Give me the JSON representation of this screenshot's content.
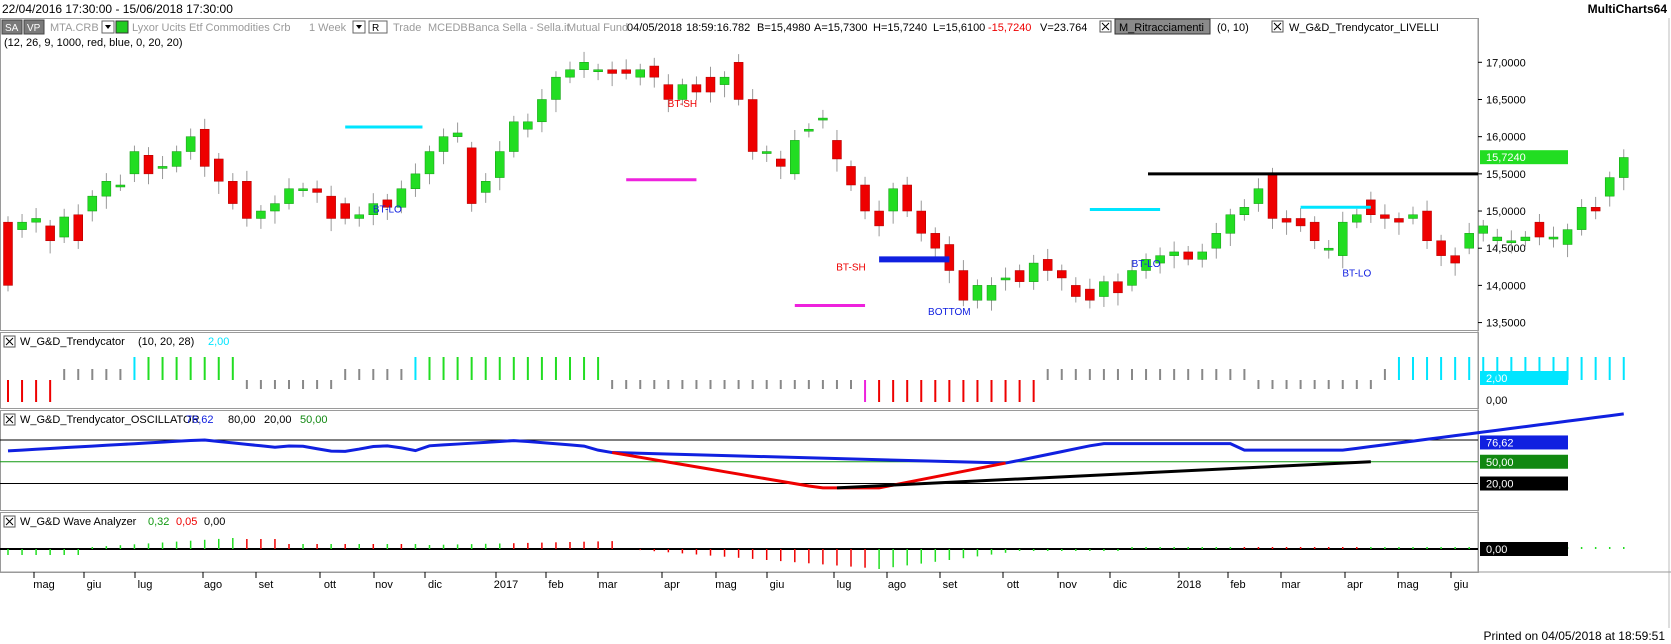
{
  "header": {
    "date_range": "22/04/2016 17:30:00 - 15/06/2018 17:30:00",
    "brand": "MultiCharts64"
  },
  "footer": {
    "printed": "Printed on 04/05/2018 at 18:59:51"
  },
  "toolbar": {
    "btn_sa": "SA",
    "btn_vp": "VP",
    "symbol": "MTA.CRB",
    "description": "Lyxor Ucits Etf Commodities Crb",
    "resolution": "1 Week",
    "btn_r": "R",
    "trade": "Trade",
    "exchange": "MCEDB",
    "broker": "Banca Sella - Sella.it",
    "data_type": "Mutual Fund",
    "datetime": "04/05/2018",
    "time": "18:59:16.782",
    "bid": "B=15,4980",
    "ask": "A=15,7300",
    "high": "H=15,7240",
    "low": "L=15,6100",
    "last": "-15,7240",
    "volume": "V=23.764",
    "study1": "M_Ritracciamenti",
    "study1_params": "(0,  10)",
    "study2": "W_G&D_Trendycator_LIVELLI",
    "params_line": "(12,  26,  9,  1000,  red,  blue,  0,  20,  20)"
  },
  "colors": {
    "up": "#22dd22",
    "down": "#ee0000",
    "cyan": "#00e5ff",
    "magenta": "#ee22dd",
    "blue": "#1020e0",
    "black": "#000000",
    "gray": "#888888"
  },
  "panes": {
    "trendycator": {
      "title": "W_G&D_Trendycator",
      "params": "(10,  20,  28)",
      "value": "2,00",
      "axis_labels": [
        "2,00",
        "0,00"
      ]
    },
    "oscillator": {
      "title": "W_G&D_Trendycator_OSCILLATOR",
      "value": "76,62",
      "level80": "80,00",
      "level20": "20,00",
      "level50": "50,00",
      "axis_labels": [
        "76,62",
        "50,00",
        "20,00"
      ]
    },
    "wave": {
      "title": "W_G&D Wave Analyzer",
      "v1": "0,32",
      "v2": "0,05",
      "v3": "0,00",
      "axis_labels": [
        "0,00"
      ]
    }
  },
  "annotations": [
    {
      "text": "BT-LO",
      "color": "#1020e0",
      "pos": "nov 2016"
    },
    {
      "text": "BT-SH",
      "color": "#ee0000",
      "pos": "apr 2017"
    },
    {
      "text": "BT-SH",
      "color": "#ee0000",
      "pos": "lug 2017"
    },
    {
      "text": "BOTTOM",
      "color": "#1020e0",
      "pos": "ago 2017"
    },
    {
      "text": "BT-LO",
      "color": "#1020e0",
      "pos": "dic 2017"
    },
    {
      "text": "BT-LO",
      "color": "#1020e0",
      "pos": "apr 2018"
    }
  ],
  "chart_data": {
    "type": "candlestick",
    "price_axis": [
      "17,0000",
      "16,5000",
      "16,0000",
      "15,5000",
      "15,0000",
      "14,5000",
      "14,0000",
      "13,5000"
    ],
    "last_price_label": "15,7240",
    "ylim": [
      13.4,
      17.3
    ],
    "x_labels": [
      "mag",
      "giu",
      "lug",
      "ago",
      "set",
      "ott",
      "nov",
      "dic",
      "2017",
      "feb",
      "mar",
      "apr",
      "mag",
      "giu",
      "lug",
      "ago",
      "set",
      "ott",
      "nov",
      "dic",
      "2018",
      "feb",
      "mar",
      "apr",
      "mag",
      "giu"
    ],
    "levels": [
      {
        "value": 15.5,
        "color": "#000000"
      }
    ],
    "candles": [
      [
        14.85,
        14.0
      ],
      [
        14.75,
        14.85
      ],
      [
        14.85,
        14.9
      ],
      [
        14.8,
        14.6
      ],
      [
        14.65,
        14.92
      ],
      [
        14.95,
        14.6
      ],
      [
        15.0,
        15.2
      ],
      [
        15.2,
        15.4
      ],
      [
        15.35,
        15.35
      ],
      [
        15.5,
        15.8
      ],
      [
        15.75,
        15.5
      ],
      [
        15.6,
        15.6
      ],
      [
        15.6,
        15.8
      ],
      [
        15.8,
        16.0
      ],
      [
        16.1,
        15.6
      ],
      [
        15.7,
        15.4
      ],
      [
        15.4,
        15.1
      ],
      [
        15.4,
        14.9
      ],
      [
        14.9,
        15.0
      ],
      [
        15.0,
        15.1
      ],
      [
        15.1,
        15.3
      ],
      [
        15.3,
        15.3
      ],
      [
        15.3,
        15.25
      ],
      [
        15.2,
        14.9
      ],
      [
        15.1,
        14.9
      ],
      [
        14.9,
        14.95
      ],
      [
        14.95,
        15.1
      ],
      [
        15.15,
        15.05
      ],
      [
        15.05,
        15.3
      ],
      [
        15.3,
        15.5
      ],
      [
        15.5,
        15.8
      ],
      [
        15.8,
        16.0
      ],
      [
        16.0,
        16.05
      ],
      [
        15.85,
        15.1
      ],
      [
        15.25,
        15.4
      ],
      [
        15.45,
        15.8
      ],
      [
        15.8,
        16.2
      ],
      [
        16.1,
        16.2
      ],
      [
        16.2,
        16.5
      ],
      [
        16.5,
        16.8
      ],
      [
        16.8,
        16.9
      ],
      [
        16.9,
        17.0
      ],
      [
        16.9,
        16.9
      ],
      [
        16.9,
        16.85
      ],
      [
        16.9,
        16.85
      ],
      [
        16.8,
        16.9
      ],
      [
        16.95,
        16.8
      ],
      [
        16.7,
        16.5
      ],
      [
        16.5,
        16.7
      ],
      [
        16.7,
        16.6
      ],
      [
        16.8,
        16.6
      ],
      [
        16.7,
        16.8
      ],
      [
        17.0,
        16.5
      ],
      [
        16.5,
        15.8
      ],
      [
        15.8,
        15.8
      ],
      [
        15.7,
        15.6
      ],
      [
        15.5,
        15.95
      ],
      [
        16.1,
        16.1
      ],
      [
        16.25,
        16.25
      ],
      [
        15.95,
        15.7
      ],
      [
        15.6,
        15.35
      ],
      [
        15.35,
        15.0
      ],
      [
        15.0,
        14.8
      ],
      [
        15.0,
        15.3
      ],
      [
        15.35,
        15.0
      ],
      [
        15.0,
        14.7
      ],
      [
        14.7,
        14.5
      ],
      [
        14.55,
        14.2
      ],
      [
        14.2,
        13.8
      ],
      [
        13.8,
        14.0
      ],
      [
        13.8,
        14.0
      ],
      [
        14.1,
        14.1
      ],
      [
        14.2,
        14.05
      ],
      [
        14.05,
        14.3
      ],
      [
        14.35,
        14.2
      ],
      [
        14.2,
        14.1
      ],
      [
        14.0,
        13.85
      ],
      [
        13.95,
        13.8
      ],
      [
        13.85,
        14.05
      ],
      [
        14.05,
        13.9
      ],
      [
        14.0,
        14.2
      ],
      [
        14.2,
        14.35
      ],
      [
        14.3,
        14.4
      ],
      [
        14.4,
        14.45
      ],
      [
        14.45,
        14.35
      ],
      [
        14.35,
        14.45
      ],
      [
        14.5,
        14.7
      ],
      [
        14.7,
        14.95
      ],
      [
        14.95,
        15.05
      ],
      [
        15.1,
        15.3
      ],
      [
        15.5,
        14.9
      ],
      [
        14.9,
        14.85
      ],
      [
        14.9,
        14.8
      ],
      [
        14.85,
        14.6
      ],
      [
        14.5,
        14.5
      ],
      [
        14.4,
        14.85
      ],
      [
        14.85,
        14.95
      ],
      [
        15.15,
        14.95
      ],
      [
        14.95,
        14.9
      ],
      [
        14.9,
        14.85
      ],
      [
        14.9,
        14.95
      ],
      [
        15.0,
        14.6
      ],
      [
        14.6,
        14.4
      ],
      [
        14.4,
        14.3
      ],
      [
        14.5,
        14.7
      ],
      [
        14.7,
        14.8
      ],
      [
        14.6,
        14.65
      ],
      [
        14.6,
        14.6
      ],
      [
        14.6,
        14.65
      ],
      [
        14.85,
        14.65
      ],
      [
        14.65,
        14.65
      ],
      [
        14.55,
        14.75
      ],
      [
        14.75,
        15.05
      ],
      [
        15.05,
        15.0
      ],
      [
        15.2,
        15.45
      ],
      [
        15.45,
        15.72
      ]
    ]
  }
}
